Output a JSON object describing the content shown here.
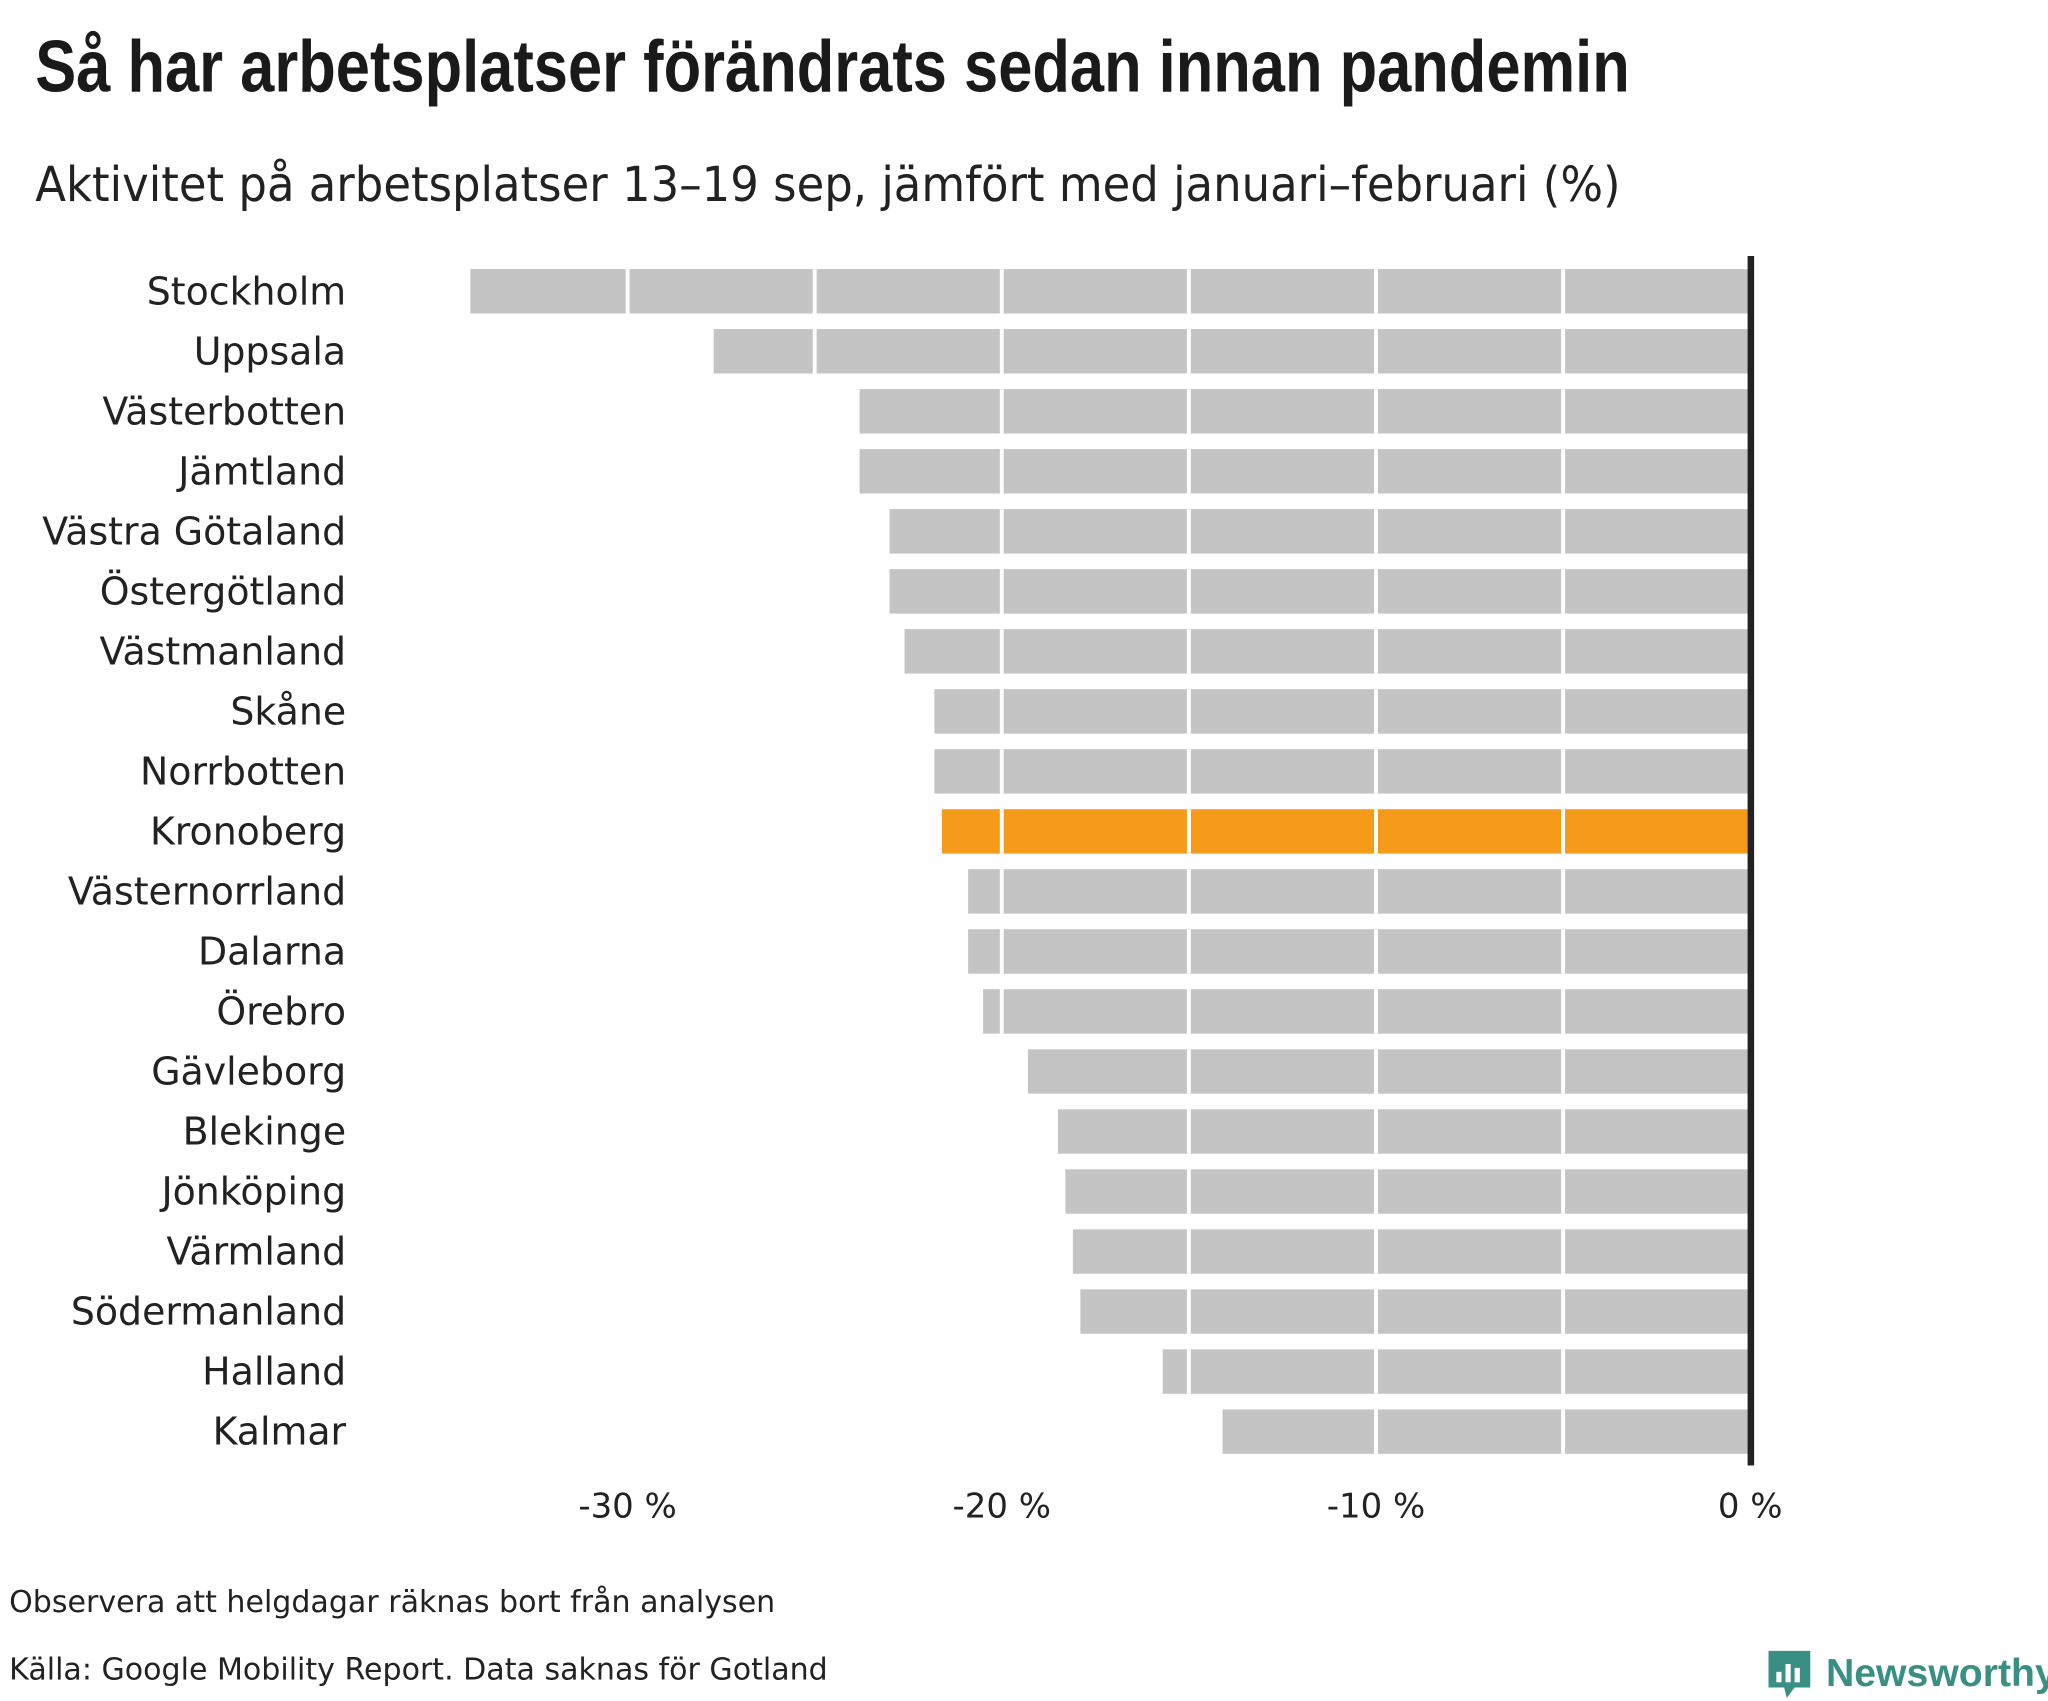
{
  "title": "Så har arbetsplatser förändrats sedan innan pandemin",
  "subtitle": "Aktivitet på arbetsplatser 13–19 sep, jämfört med januari–februari (%)",
  "footer": {
    "note": "Observera att helgdagar räknas bort från analysen",
    "source": "Källa: Google Mobility Report. Data saknas för Gotland"
  },
  "logo": {
    "text": "Newsworthy",
    "icon": "newsworthy-chart-bubble-icon",
    "color": "#3a8f84"
  },
  "chart_data": {
    "type": "bar",
    "orientation": "horizontal",
    "title": "Så har arbetsplatser förändrats sedan innan pandemin",
    "subtitle": "Aktivitet på arbetsplatser 13–19 sep, jämfört med januari–februari (%)",
    "categories": [
      "Stockholm",
      "Uppsala",
      "Västerbotten",
      "Jämtland",
      "Västra Götaland",
      "Östergötland",
      "Västmanland",
      "Skåne",
      "Norrbotten",
      "Kronoberg",
      "Västernorrland",
      "Dalarna",
      "Örebro",
      "Gävleborg",
      "Blekinge",
      "Jönköping",
      "Värmland",
      "Södermanland",
      "Halland",
      "Kalmar"
    ],
    "values": [
      -34.2,
      -27.7,
      -23.8,
      -23.8,
      -23.0,
      -23.0,
      -22.6,
      -21.8,
      -21.8,
      -21.6,
      -20.9,
      -20.9,
      -20.5,
      -19.3,
      -18.5,
      -18.3,
      -18.1,
      -17.9,
      -15.7,
      -14.1
    ],
    "highlight": "Kronoberg",
    "xlim": [
      -35,
      0
    ],
    "xticks": [
      -30,
      -20,
      -10,
      0
    ],
    "xtick_labels": [
      "-30 %",
      "-20 %",
      "-10 %",
      "0 %"
    ],
    "gridlines_every": 5,
    "colors": {
      "bar": "#c4c4c4",
      "highlight": "#f59b19",
      "axis": "#222222",
      "grid": "#ffffff"
    }
  }
}
